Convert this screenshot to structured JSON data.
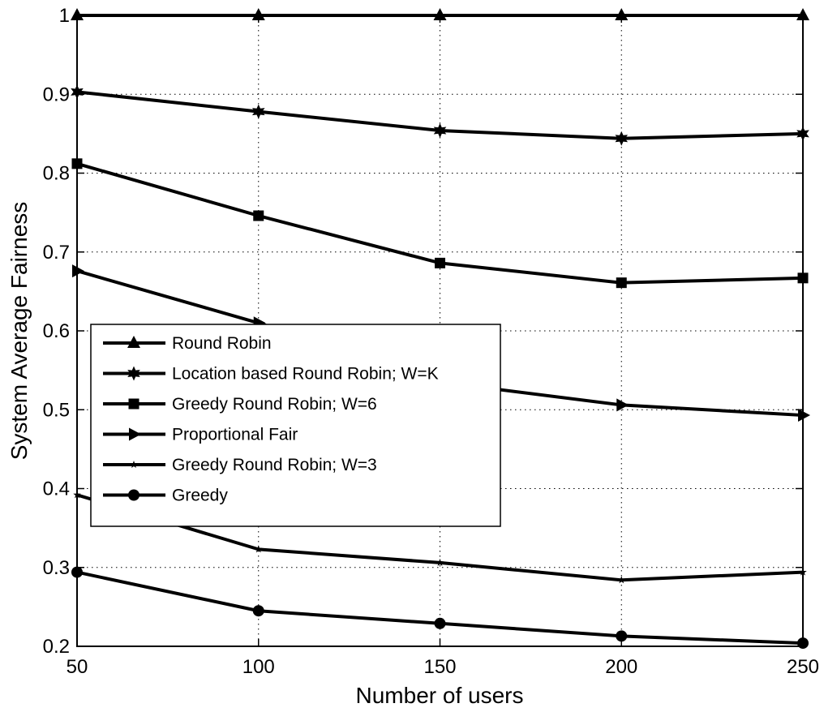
{
  "chart_data": {
    "type": "line",
    "xlabel": "Number of users",
    "ylabel": "System Average Fairness",
    "xlim": [
      50,
      250
    ],
    "ylim": [
      0.2,
      1
    ],
    "xticks": [
      50,
      100,
      150,
      200,
      250
    ],
    "yticks": [
      0.2,
      0.3,
      0.4,
      0.5,
      0.6,
      0.7,
      0.8,
      0.9,
      1
    ],
    "xtick_labels": [
      "50",
      "100",
      "150",
      "200",
      "250"
    ],
    "ytick_labels": [
      "0.2",
      "0.3",
      "0.4",
      "0.5",
      "0.6",
      "0.7",
      "0.8",
      "0.9",
      "1"
    ],
    "grid": true,
    "grid_style": "dotted",
    "legend_position": "center-left",
    "line_color": "#000000",
    "x": [
      50,
      100,
      150,
      200,
      250
    ],
    "series": [
      {
        "name": "Round Robin",
        "marker": "triangle-up",
        "values": [
          1.0,
          1.0,
          1.0,
          1.0,
          1.0
        ]
      },
      {
        "name": "Location based Round Robin; W=K",
        "marker": "hexagram",
        "values": [
          0.903,
          0.878,
          0.854,
          0.844,
          0.85
        ]
      },
      {
        "name": "Greedy Round Robin; W=6",
        "marker": "square",
        "values": [
          0.812,
          0.746,
          0.686,
          0.661,
          0.667
        ]
      },
      {
        "name": "Proportional Fair",
        "marker": "triangle-right",
        "values": [
          0.676,
          0.61,
          0.535,
          0.506,
          0.493
        ]
      },
      {
        "name": "Greedy Round Robin; W=3",
        "marker": "star",
        "values": [
          0.392,
          0.323,
          0.306,
          0.284,
          0.294
        ]
      },
      {
        "name": "Greedy",
        "marker": "circle",
        "values": [
          0.294,
          0.245,
          0.229,
          0.213,
          0.204
        ]
      }
    ]
  }
}
